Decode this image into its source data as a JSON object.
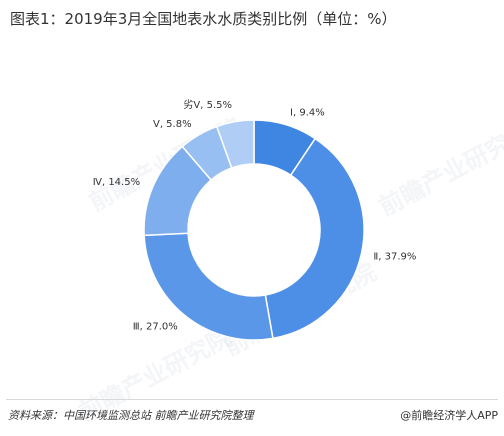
{
  "title": "图表1：2019年3月全国地表水水质类别比例（单位：%）",
  "chart_data": {
    "type": "pie",
    "title": "图表1：2019年3月全国地表水水质类别比例（单位：%）",
    "categories": [
      "Ⅰ",
      "Ⅱ",
      "Ⅲ",
      "Ⅳ",
      "Ⅴ",
      "劣Ⅴ"
    ],
    "values": [
      9.4,
      37.9,
      27.0,
      14.5,
      5.8,
      5.5
    ],
    "labels": [
      "Ⅰ, 9.4%",
      "Ⅱ, 37.9%",
      "Ⅲ, 27.0%",
      "Ⅳ, 14.5%",
      "Ⅴ, 5.8%",
      "劣Ⅴ, 5.5%"
    ],
    "colors": [
      "#3f86e3",
      "#4d8fe6",
      "#5b97e8",
      "#7eaeee",
      "#98bff2",
      "#afcdf5"
    ],
    "donut": true
  },
  "watermark": "前瞻产业研究院",
  "footer": {
    "source": "资料来源：中国环境监测总站 前瞻产业研究院整理",
    "brand": "@前瞻经济学人APP"
  }
}
